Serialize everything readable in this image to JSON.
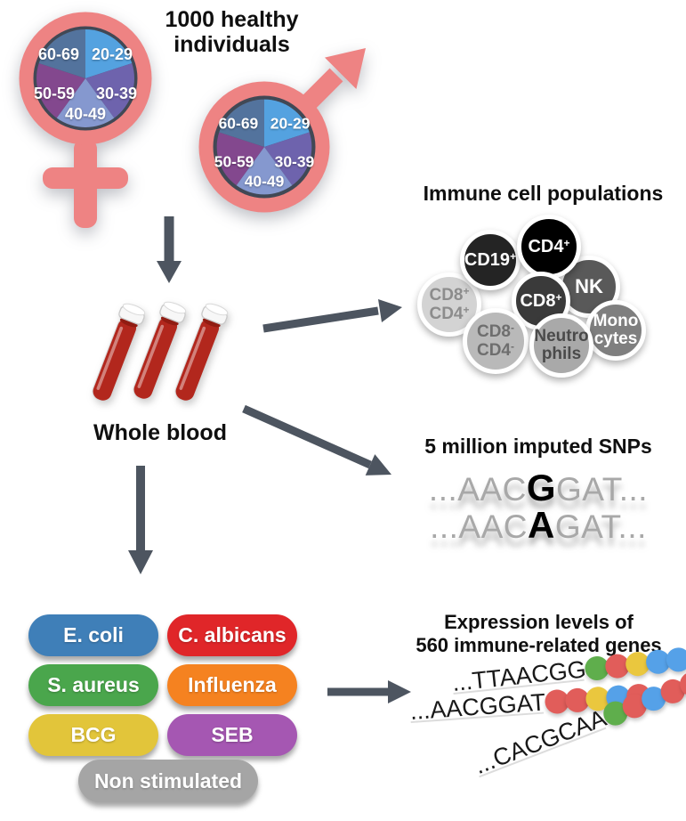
{
  "palette": {
    "symbol_pink": "#ee8383",
    "pie_ring_navy": "#414855",
    "arrow_gray": "#4d5560"
  },
  "cohort": {
    "title_line1": "1000 healthy",
    "title_line2": "individuals",
    "female_symbol": "female-sign",
    "male_symbol": "male-sign",
    "age_groups": [
      {
        "label": "20-29",
        "color": "#54a2e0"
      },
      {
        "label": "30-39",
        "color": "#6e63ad"
      },
      {
        "label": "40-49",
        "color": "#8598cf"
      },
      {
        "label": "50-59",
        "color": "#83488e"
      },
      {
        "label": "60-69",
        "color": "#53739d"
      }
    ]
  },
  "blood": {
    "label": "Whole blood",
    "tube_red": "#b2271d",
    "blood_dark": "#911c12",
    "cap_white": "#f7f7f7"
  },
  "immune_cells": {
    "title": "Immune cell populations",
    "cells": [
      {
        "l1": "CD8",
        "s1": "+",
        "l2": "CD4",
        "s2": "+",
        "bg": "#d3d3d3",
        "fg": "#8c8c8c"
      },
      {
        "l1": "CD19",
        "s1": "+",
        "bg": "#242424",
        "fg": "#ffffff"
      },
      {
        "l1": "NK",
        "bg": "#595959",
        "fg": "#ffffff"
      },
      {
        "l1": "CD4",
        "s1": "+",
        "bg": "#000000",
        "fg": "#ffffff"
      },
      {
        "l1": "CD8",
        "s1": "+",
        "bg": "#3a3a3a",
        "fg": "#ffffff"
      },
      {
        "l1": "CD8",
        "s1": "-",
        "l2": "CD4",
        "s2": "-",
        "bg": "#b9b9b9",
        "fg": "#6e6e6e"
      },
      {
        "l1": "Mono",
        "l2": "cytes",
        "bg": "#7f7f7f",
        "fg": "#ffffff"
      },
      {
        "l1": "Neutro",
        "l2": "phils",
        "bg": "#a9a9a9",
        "fg": "#4a4a4a"
      }
    ]
  },
  "snps": {
    "title": "5 million imputed SNPs",
    "letter_gray": "#a8a8a8",
    "variant_black": "#000000",
    "rows": [
      {
        "pre": "...AAC",
        "variant": "G",
        "post": "GAT..."
      },
      {
        "pre": "...AAC",
        "variant": "A",
        "post": "GAT..."
      }
    ]
  },
  "stimulations": {
    "items": [
      {
        "label": "E. coli",
        "color": "#3f7fb8"
      },
      {
        "label": "C. albicans",
        "color": "#e02629"
      },
      {
        "label": "S. aureus",
        "color": "#4aa64c"
      },
      {
        "label": "Influenza",
        "color": "#f58220"
      },
      {
        "label": "BCG",
        "color": "#e2c53a"
      },
      {
        "label": "SEB",
        "color": "#a557b2"
      },
      {
        "label": "Non stimulated",
        "color": "#a5a5a5"
      }
    ]
  },
  "expression": {
    "title_line1": "Expression levels of",
    "title_line2": "560 immune-related genes",
    "dot_colors": {
      "green": "#5fae4c",
      "red": "#e15d5a",
      "yellow": "#eac73e",
      "blue": "#55a1e8"
    },
    "strands": [
      {
        "seq": "...TTAACGG",
        "dots": [
          "green",
          "red",
          "yellow",
          "blue",
          "blue"
        ]
      },
      {
        "seq": "...AACGGAT",
        "dots": [
          "red",
          "red",
          "yellow",
          "blue",
          "red"
        ]
      },
      {
        "seq": "...CACGCAA",
        "dots": [
          "green",
          "red",
          "blue",
          "red",
          "red"
        ]
      }
    ]
  }
}
